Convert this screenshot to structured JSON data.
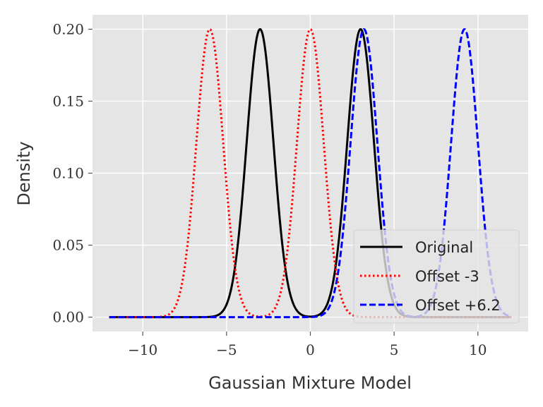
{
  "chart_data": {
    "type": "line",
    "title": "",
    "xlabel": "Gaussian Mixture Model",
    "ylabel": "Density",
    "xlim": [
      -13,
      13
    ],
    "ylim": [
      -0.01,
      0.21
    ],
    "x_ticks": [
      -10,
      -5,
      0,
      5,
      10
    ],
    "x_tick_labels": [
      "−10",
      "−5",
      "0",
      "5",
      "10"
    ],
    "y_ticks": [
      0.0,
      0.05,
      0.1,
      0.15,
      0.2
    ],
    "y_tick_labels": [
      "0.00",
      "0.05",
      "0.10",
      "0.15",
      "0.20"
    ],
    "grid": true,
    "background_color": "#e5e5e5",
    "legend_position": "lower right",
    "x_range": [
      -12,
      12
    ],
    "series": [
      {
        "name": "Original",
        "style": "solid",
        "color": "#000000",
        "components": [
          {
            "mean": -3,
            "peak": 0.2
          },
          {
            "mean": 3,
            "peak": 0.2
          }
        ]
      },
      {
        "name": "Offset -3",
        "style": "dotted",
        "color": "#ff0000",
        "components": [
          {
            "mean": -6,
            "peak": 0.2
          },
          {
            "mean": 0,
            "peak": 0.2
          }
        ]
      },
      {
        "name": "Offset +6.2",
        "style": "dashed",
        "color": "#0000ff",
        "components": [
          {
            "mean": 3.2,
            "peak": 0.2
          },
          {
            "mean": 9.2,
            "peak": 0.2
          }
        ]
      }
    ],
    "component_std": 0.8
  }
}
